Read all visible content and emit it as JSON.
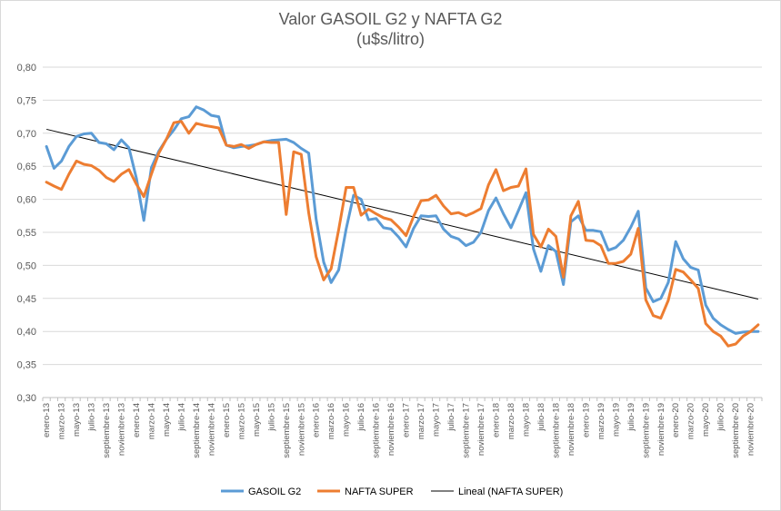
{
  "chart_data": {
    "type": "line",
    "title": "Valor GASOIL G2 y NAFTA G2",
    "subtitle": "(u$s/litro)",
    "xlabel": "",
    "ylabel": "",
    "ylim": [
      0.3,
      0.8
    ],
    "yticks": [
      "0,80",
      "0,75",
      "0,70",
      "0,65",
      "0,60",
      "0,55",
      "0,50",
      "0,45",
      "0,40",
      "0,35",
      "0,30"
    ],
    "grid": "horizontal",
    "legend_position": "bottom",
    "x_start": "enero-13",
    "x_end": "diciembre-20",
    "tick_labels": [
      "enero-13",
      "marzo-13",
      "mayo-13",
      "julio-13",
      "septiembre-13",
      "noviembre-13",
      "enero-14",
      "marzo-14",
      "mayo-14",
      "julio-14",
      "septiembre-14",
      "noviembre-14",
      "enero-15",
      "marzo-15",
      "mayo-15",
      "julio-15",
      "septiembre-15",
      "noviembre-15",
      "enero-16",
      "marzo-16",
      "mayo-16",
      "julio-16",
      "septiembre-16",
      "noviembre-16",
      "enero-17",
      "marzo-17",
      "mayo-17",
      "julio-17",
      "septiembre-17",
      "noviembre-17",
      "enero-18",
      "marzo-18",
      "mayo-18",
      "julio-18",
      "septiembre-18",
      "noviembre-18",
      "enero-19",
      "marzo-19",
      "mayo-19",
      "julio-19",
      "septiembre-19",
      "noviembre-19",
      "enero-20",
      "marzo-20",
      "mayo-20",
      "julio-20",
      "septiembre-20",
      "noviembre-20"
    ],
    "series": [
      {
        "name": "GASOIL G2",
        "color": "#5b9bd5",
        "values": [
          0.68,
          0.647,
          0.658,
          0.68,
          0.695,
          0.699,
          0.7,
          0.686,
          0.684,
          0.675,
          0.69,
          0.678,
          0.632,
          0.568,
          0.648,
          0.673,
          0.691,
          0.705,
          0.722,
          0.725,
          0.74,
          0.735,
          0.727,
          0.725,
          0.682,
          0.678,
          0.68,
          0.681,
          0.683,
          0.687,
          0.689,
          0.69,
          0.691,
          0.686,
          0.677,
          0.67,
          0.57,
          0.505,
          0.474,
          0.493,
          0.555,
          0.606,
          0.6,
          0.569,
          0.571,
          0.557,
          0.555,
          0.543,
          0.528,
          0.556,
          0.575,
          0.574,
          0.575,
          0.555,
          0.544,
          0.54,
          0.53,
          0.535,
          0.55,
          0.583,
          0.602,
          0.578,
          0.557,
          0.583,
          0.61,
          0.525,
          0.491,
          0.53,
          0.521,
          0.471,
          0.566,
          0.575,
          0.553,
          0.553,
          0.551,
          0.523,
          0.527,
          0.538,
          0.558,
          0.582,
          0.466,
          0.445,
          0.45,
          0.474,
          0.536,
          0.51,
          0.497,
          0.493,
          0.44,
          0.42,
          0.41,
          0.403,
          0.397,
          0.399,
          0.4,
          0.4
        ]
      },
      {
        "name": "NAFTA SUPER",
        "color": "#ed7d31",
        "values": [
          0.626,
          0.62,
          0.615,
          0.638,
          0.658,
          0.653,
          0.651,
          0.644,
          0.633,
          0.627,
          0.638,
          0.645,
          0.623,
          0.604,
          0.638,
          0.67,
          0.691,
          0.716,
          0.718,
          0.7,
          0.715,
          0.712,
          0.71,
          0.708,
          0.682,
          0.68,
          0.683,
          0.677,
          0.683,
          0.687,
          0.686,
          0.686,
          0.577,
          0.672,
          0.668,
          0.58,
          0.513,
          0.478,
          0.495,
          0.554,
          0.618,
          0.618,
          0.576,
          0.585,
          0.578,
          0.572,
          0.569,
          0.558,
          0.545,
          0.574,
          0.598,
          0.599,
          0.606,
          0.59,
          0.578,
          0.58,
          0.575,
          0.58,
          0.586,
          0.622,
          0.645,
          0.613,
          0.618,
          0.62,
          0.646,
          0.547,
          0.528,
          0.555,
          0.544,
          0.482,
          0.575,
          0.597,
          0.538,
          0.537,
          0.53,
          0.503,
          0.503,
          0.506,
          0.517,
          0.556,
          0.448,
          0.424,
          0.42,
          0.447,
          0.494,
          0.49,
          0.478,
          0.465,
          0.412,
          0.4,
          0.393,
          0.378,
          0.381,
          0.393,
          0.4,
          0.41
        ]
      }
    ],
    "trendline": {
      "name": "Lineal (NAFTA SUPER)",
      "color": "#000000",
      "start_value": 0.706,
      "end_value": 0.449
    }
  }
}
